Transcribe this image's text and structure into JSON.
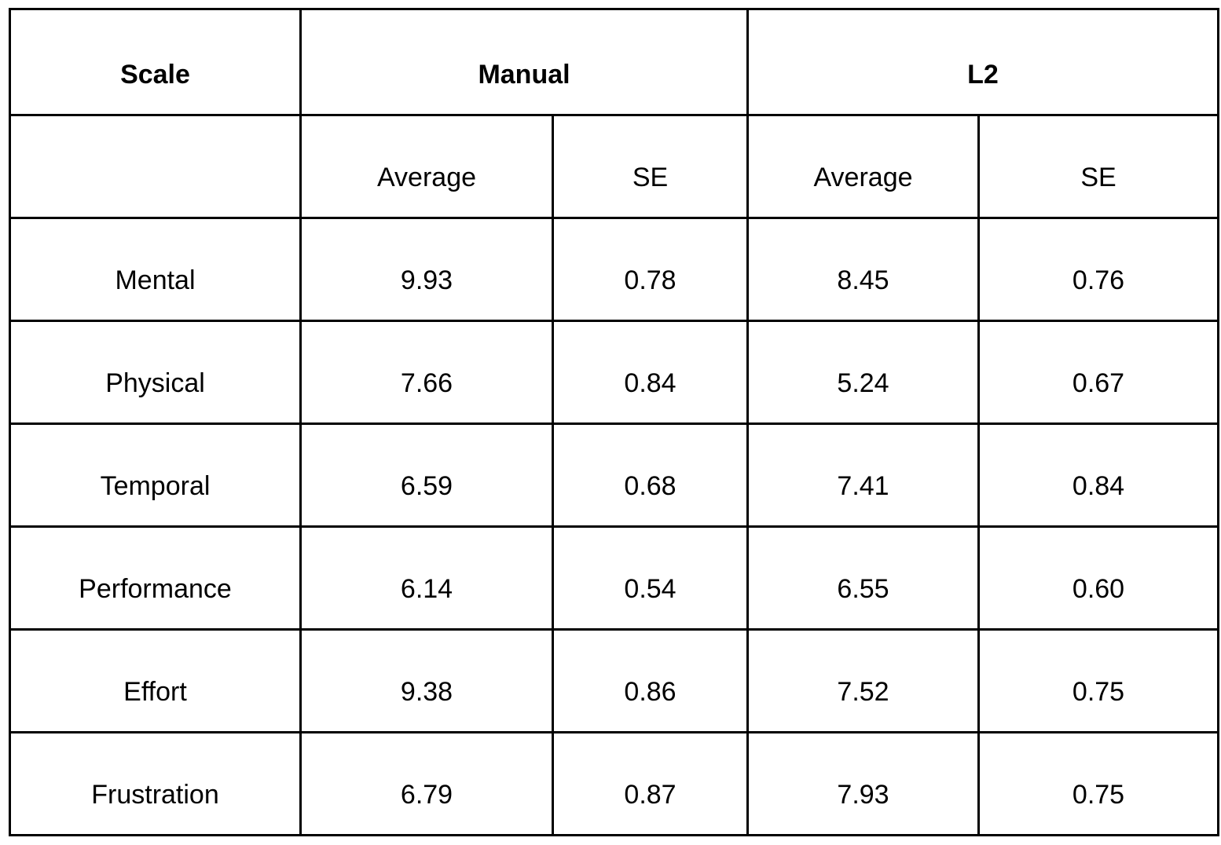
{
  "table": {
    "header": {
      "scale": "Scale",
      "group1": "Manual",
      "group2": "L2"
    },
    "subheader": {
      "blank": "",
      "m_avg": "Average",
      "m_se": "SE",
      "l_avg": "Average",
      "l_se": "SE"
    },
    "rows": [
      {
        "scale": "Mental",
        "m_avg": "9.93",
        "m_se": "0.78",
        "l_avg": "8.45",
        "l_se": "0.76"
      },
      {
        "scale": "Physical",
        "m_avg": "7.66",
        "m_se": "0.84",
        "l_avg": "5.24",
        "l_se": "0.67"
      },
      {
        "scale": "Temporal",
        "m_avg": "6.59",
        "m_se": "0.68",
        "l_avg": "7.41",
        "l_se": "0.84"
      },
      {
        "scale": "Performance",
        "m_avg": "6.14",
        "m_se": "0.54",
        "l_avg": "6.55",
        "l_se": "0.60"
      },
      {
        "scale": "Effort",
        "m_avg": "9.38",
        "m_se": "0.86",
        "l_avg": "7.52",
        "l_se": "0.75"
      },
      {
        "scale": "Frustration",
        "m_avg": "6.79",
        "m_se": "0.87",
        "l_avg": "7.93",
        "l_se": "0.75"
      }
    ]
  }
}
